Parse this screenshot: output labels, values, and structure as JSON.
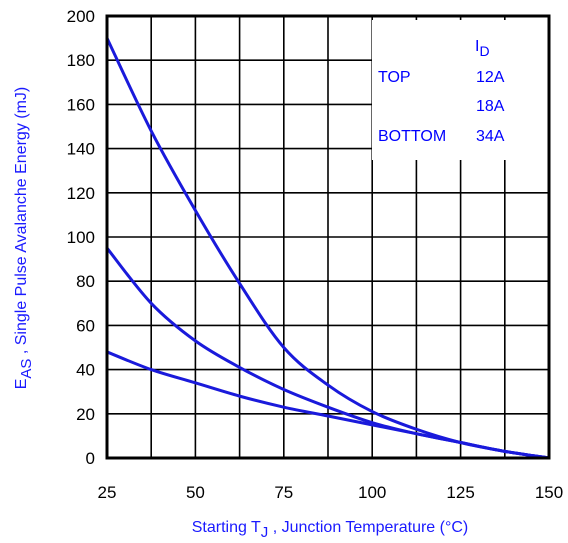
{
  "chart_data": {
    "type": "line",
    "title": "",
    "xlabel_main": "Starting T",
    "xlabel_sub": "J",
    "xlabel_rest": " , Junction Temperature (°C)",
    "ylabel_main": "E",
    "ylabel_sub": "AS",
    "ylabel_rest": " , Single Pulse Avalanche Energy (mJ)",
    "xlim": [
      25,
      150
    ],
    "ylim": [
      0,
      200
    ],
    "x_ticks": [
      25,
      50,
      75,
      100,
      125,
      150
    ],
    "y_ticks": [
      0,
      20,
      40,
      60,
      80,
      100,
      120,
      140,
      160,
      180,
      200
    ],
    "grid": true,
    "legend": {
      "placement": "top-right",
      "header_main": "I",
      "header_sub": "D",
      "rows": [
        {
          "position": "TOP",
          "value": "12A"
        },
        {
          "position": "",
          "value": "18A"
        },
        {
          "position": "BOTTOM",
          "value": "34A"
        }
      ]
    },
    "series": [
      {
        "name": "12A",
        "x": [
          25,
          37.5,
          50,
          62.5,
          75,
          87.5,
          100,
          112.5,
          125,
          137.5,
          150
        ],
        "y": [
          190,
          148,
          112,
          79,
          50,
          33,
          21,
          13,
          7,
          3,
          0
        ]
      },
      {
        "name": "18A",
        "x": [
          25,
          37.5,
          50,
          62.5,
          75,
          87.5,
          100,
          112.5,
          125,
          137.5,
          150
        ],
        "y": [
          95,
          70,
          53,
          41,
          31,
          23,
          16,
          11,
          7,
          3,
          0
        ]
      },
      {
        "name": "34A",
        "x": [
          25,
          37.5,
          50,
          62.5,
          75,
          87.5,
          100,
          112.5,
          125,
          137.5,
          150
        ],
        "y": [
          48,
          40,
          34,
          28,
          23,
          19,
          15,
          11,
          7,
          3,
          0
        ]
      }
    ],
    "colors": {
      "series": "#1a1adb",
      "label": "#1a1aff",
      "legend": "#0000ff"
    }
  }
}
